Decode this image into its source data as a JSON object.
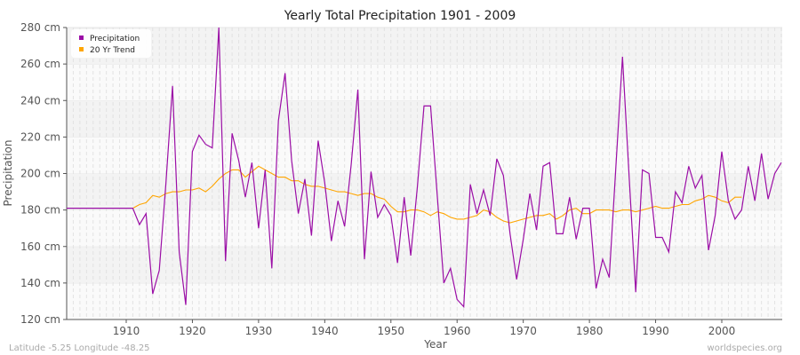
{
  "chart_data": {
    "type": "line",
    "title": "Yearly Total Precipitation 1901 - 2009",
    "xlabel": "Year",
    "ylabel": "Precipitation",
    "ylim": [
      120,
      280
    ],
    "xlim": [
      1901,
      2009
    ],
    "y_ticks": [
      "120 cm",
      "140 cm",
      "160 cm",
      "180 cm",
      "200 cm",
      "220 cm",
      "240 cm",
      "260 cm",
      "280 cm"
    ],
    "x_ticks": [
      "1910",
      "1920",
      "1930",
      "1940",
      "1950",
      "1960",
      "1970",
      "1980",
      "1990",
      "2000"
    ],
    "grid": true,
    "legend_position": "top-left",
    "series": [
      {
        "name": "Precipitation",
        "color": "#9b0ea6",
        "start_year": 1901,
        "values": [
          181,
          181,
          181,
          181,
          181,
          181,
          181,
          181,
          181,
          181,
          181,
          172,
          178,
          134,
          147,
          195,
          248,
          157,
          128,
          212,
          221,
          216,
          214,
          280,
          152,
          222,
          207,
          187,
          206,
          170,
          202,
          148,
          229,
          255,
          207,
          178,
          197,
          166,
          218,
          195,
          163,
          185,
          171,
          205,
          246,
          153,
          201,
          176,
          183,
          177,
          151,
          187,
          155,
          193,
          237,
          237,
          188,
          140,
          148,
          131,
          127,
          194,
          178,
          191,
          177,
          208,
          199,
          167,
          142,
          164,
          189,
          169,
          204,
          206,
          167,
          167,
          187,
          164,
          181,
          181,
          137,
          153,
          143,
          204,
          264,
          198,
          135,
          202,
          200,
          165,
          165,
          157,
          190,
          184,
          204,
          192,
          199,
          158,
          177,
          212,
          185,
          175,
          180,
          204,
          185,
          211,
          186,
          200,
          206
        ]
      },
      {
        "name": "20 Yr Trend",
        "color": "#ffa500",
        "start_year": 1911,
        "values": [
          181,
          183,
          184,
          188,
          187,
          189,
          190,
          190,
          191,
          191,
          192,
          190,
          193,
          197,
          200,
          202,
          202,
          198,
          201,
          204,
          202,
          200,
          198,
          198,
          196,
          196,
          194,
          193,
          193,
          192,
          191,
          190,
          190,
          189,
          188,
          189,
          189,
          187,
          186,
          182,
          179,
          179,
          180,
          180,
          179,
          177,
          179,
          178,
          176,
          175,
          175,
          176,
          177,
          180,
          179,
          176,
          174,
          173,
          174,
          175,
          176,
          177,
          177,
          178,
          175,
          177,
          180,
          181,
          178,
          178,
          180,
          180,
          180,
          179,
          180,
          180,
          179,
          180,
          181,
          182,
          181,
          181,
          182,
          183,
          183,
          185,
          186,
          188,
          187,
          185,
          184,
          187,
          187
        ]
      }
    ]
  },
  "footer": {
    "location": "Latitude -5.25 Longitude -48.25",
    "source": "worldspecies.org"
  }
}
